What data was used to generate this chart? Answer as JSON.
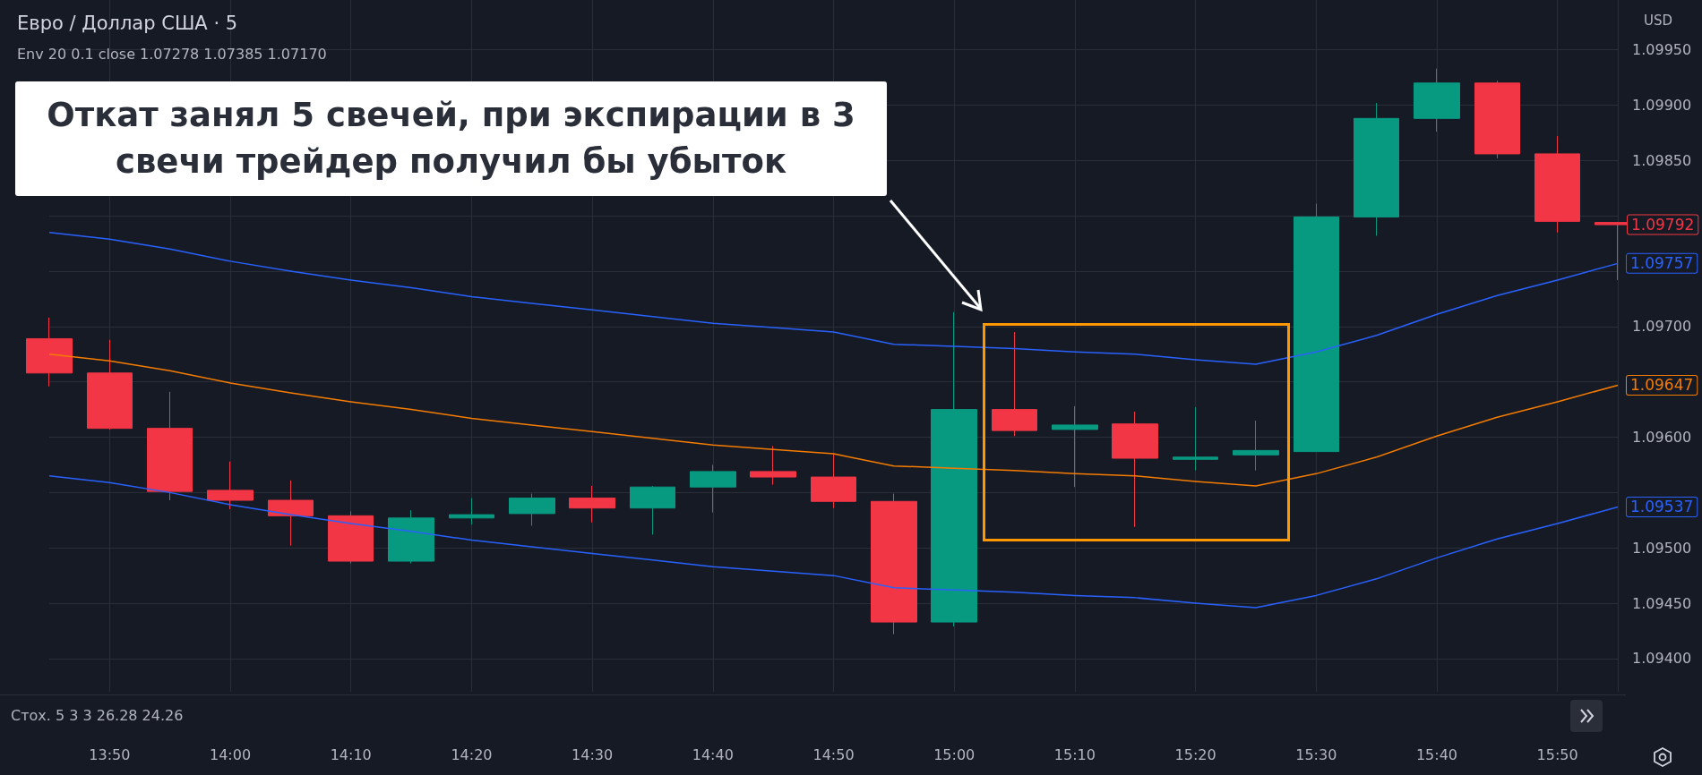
{
  "chart_data": {
    "type": "candlestick",
    "title": "Евро / Доллар США · 5",
    "subtitle": "Env 20 0.1 close 1.07278 1.07385 1.07170",
    "ylabel": "USD",
    "categories": [
      null,
      "13:50",
      null,
      "14:00",
      null,
      "14:10",
      null,
      "14:20",
      null,
      "14:30",
      null,
      "14:40",
      null,
      "14:50",
      null,
      "15:00",
      null,
      "15:10",
      null,
      "15:20",
      null,
      "15:30",
      null,
      "15:40",
      null,
      "15:50",
      null
    ],
    "ohlc": [
      [
        1.09689,
        1.09708,
        1.09646,
        1.09658
      ],
      [
        1.09658,
        1.09688,
        1.09607,
        1.09608
      ],
      [
        1.09608,
        1.09641,
        1.09543,
        1.09551
      ],
      [
        1.09552,
        1.09578,
        1.09535,
        1.09543
      ],
      [
        1.09543,
        1.09561,
        1.09502,
        1.09529
      ],
      [
        1.09529,
        1.09533,
        1.09486,
        1.09488
      ],
      [
        1.09488,
        1.09534,
        1.09486,
        1.09527
      ],
      [
        1.09527,
        1.09545,
        1.09521,
        1.0953
      ],
      [
        1.09531,
        1.09549,
        1.0952,
        1.09545
      ],
      [
        1.09545,
        1.09556,
        1.09523,
        1.09536
      ],
      [
        1.09536,
        1.09556,
        1.09512,
        1.09555
      ],
      [
        1.09555,
        1.09575,
        1.09532,
        1.09569
      ],
      [
        1.09569,
        1.09592,
        1.09557,
        1.09564
      ],
      [
        1.09564,
        1.09585,
        1.09536,
        1.09542
      ],
      [
        1.09542,
        1.09549,
        1.09422,
        1.09433
      ],
      [
        1.09433,
        1.09713,
        1.09429,
        1.09625
      ],
      [
        1.09625,
        1.09695,
        1.09601,
        1.09606
      ],
      [
        1.09607,
        1.09628,
        1.09555,
        1.09611
      ],
      [
        1.09612,
        1.09623,
        1.09519,
        1.09581
      ],
      [
        1.0958,
        1.09627,
        1.0957,
        1.09582
      ],
      [
        1.09584,
        1.09615,
        1.0957,
        1.09588
      ],
      [
        1.09587,
        1.09811,
        1.09587,
        1.09799
      ],
      [
        1.09799,
        1.09902,
        1.09782,
        1.09888
      ],
      [
        1.09888,
        1.09933,
        1.09876,
        1.0992
      ],
      [
        1.0992,
        1.09922,
        1.09852,
        1.09856
      ],
      [
        1.09856,
        1.09872,
        1.09785,
        1.09795
      ],
      [
        1.09794,
        1.09794,
        1.09742,
        1.09792
      ]
    ],
    "series": [
      {
        "type": "line",
        "color": "#2962ff",
        "values": [
          1.09785,
          1.09779,
          1.0977,
          1.09759,
          1.0975,
          1.09742,
          1.09735,
          1.09727,
          1.09721,
          1.09715,
          1.09709,
          1.09703,
          1.09699,
          1.09695,
          1.09684,
          1.09682,
          1.0968,
          1.09677,
          1.09675,
          1.0967,
          1.09666,
          1.09677,
          1.09692,
          1.09711,
          1.09728,
          1.09742,
          1.09757
        ],
        "value_labels": [
          null,
          null,
          null,
          null,
          null,
          null,
          null,
          null,
          null,
          null,
          null,
          null,
          null,
          null,
          null,
          null,
          null,
          null,
          null,
          null,
          null,
          null,
          null,
          null,
          null,
          null,
          "1.09757"
        ]
      },
      {
        "type": "line",
        "color": "#f57c00",
        "values": [
          1.09675,
          1.09669,
          1.0966,
          1.09649,
          1.0964,
          1.09632,
          1.09625,
          1.09617,
          1.09611,
          1.09605,
          1.09599,
          1.09593,
          1.09589,
          1.09585,
          1.09574,
          1.09572,
          1.0957,
          1.09567,
          1.09565,
          1.0956,
          1.09556,
          1.09567,
          1.09582,
          1.09601,
          1.09618,
          1.09632,
          1.09647
        ],
        "value_labels": [
          null,
          null,
          null,
          null,
          null,
          null,
          null,
          null,
          null,
          null,
          null,
          null,
          null,
          null,
          null,
          null,
          null,
          null,
          null,
          null,
          null,
          null,
          null,
          null,
          null,
          null,
          "1.09647"
        ]
      },
      {
        "type": "line",
        "color": "#2962ff",
        "values": [
          1.09565,
          1.09559,
          1.0955,
          1.09539,
          1.0953,
          1.09522,
          1.09515,
          1.09507,
          1.09501,
          1.09495,
          1.09489,
          1.09483,
          1.09479,
          1.09475,
          1.09464,
          1.09462,
          1.0946,
          1.09457,
          1.09455,
          1.0945,
          1.09446,
          1.09457,
          1.09472,
          1.09491,
          1.09508,
          1.09522,
          1.09537
        ],
        "value_labels": [
          null,
          null,
          null,
          null,
          null,
          null,
          null,
          null,
          null,
          null,
          null,
          null,
          null,
          null,
          null,
          null,
          null,
          null,
          null,
          null,
          null,
          null,
          null,
          null,
          null,
          null,
          "1.09537"
        ]
      }
    ],
    "colors": [
      "#f23645",
      "#f23645",
      "#f23645",
      "#f23645",
      "#f23645",
      "#f23645",
      "#089981",
      "#089981",
      "#089981",
      "#f23645",
      "#089981",
      "#089981",
      "#f23645",
      "#f23645",
      "#f23645",
      "#089981",
      "#f23645",
      "#089981",
      "#f23645",
      "#089981",
      "#089981",
      "#089981",
      "#089981",
      "#089981",
      "#f23645",
      "#f23645",
      "#f23645"
    ],
    "ylim": [
      1.0937,
      1.09995
    ],
    "yticks": [
      {
        "value": 1.094,
        "label": "1.09400"
      },
      {
        "value": 1.0945,
        "label": "1.09450"
      },
      {
        "value": 1.095,
        "label": "1.09500"
      },
      {
        "value": 1.0955,
        "label": null
      },
      {
        "value": 1.096,
        "label": "1.09600"
      },
      {
        "value": 1.0965,
        "label": null
      },
      {
        "value": 1.097,
        "label": "1.09700"
      },
      {
        "value": 1.0975,
        "label": null
      },
      {
        "value": 1.098,
        "label": null
      },
      {
        "value": 1.0985,
        "label": "1.09850"
      },
      {
        "value": 1.099,
        "label": "1.09900"
      },
      {
        "value": 1.0995,
        "label": "1.09950"
      }
    ],
    "grid": true,
    "marker": "none",
    "line_style": "solid",
    "annotations": [
      "Откат занял 5 свечей, при экспирации в 3 свечи трейдер получил бы убыток",
      "1.09792",
      "Стох. 5 3 3 26.28 24.26"
    ]
  }
}
